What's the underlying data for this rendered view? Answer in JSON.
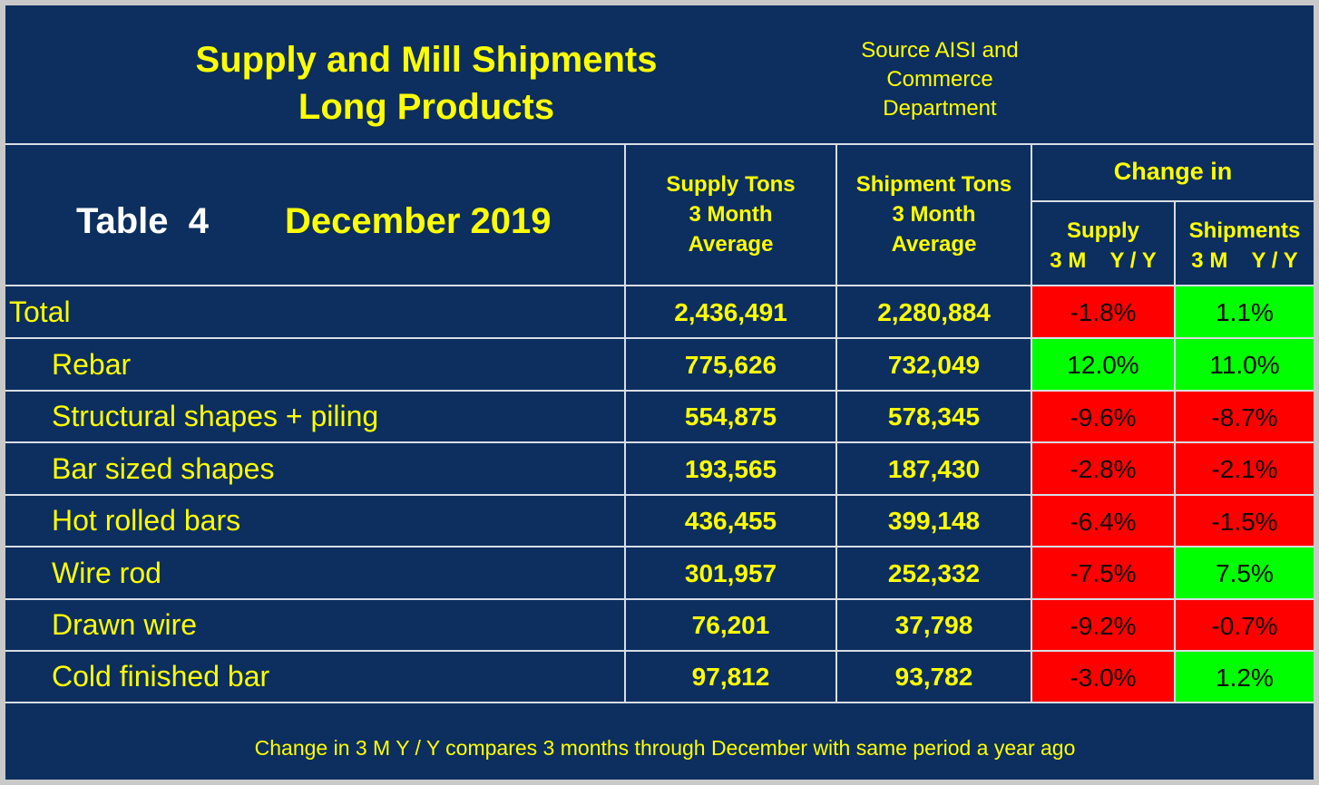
{
  "header": {
    "title_line1": "Supply and Mill Shipments",
    "title_line2": "Long Products",
    "source_line1": "Source AISI and",
    "source_line2": "Commerce",
    "source_line3": "Department"
  },
  "table_label": "Table  4",
  "date_label": "December 2019",
  "columns": {
    "supply": {
      "line1": "Supply Tons",
      "line2": "3 Month",
      "line3": "Average"
    },
    "shipment": {
      "line1": "Shipment Tons",
      "line2": "3 Month",
      "line3": "Average"
    },
    "change_in": "Change in",
    "supply_change": {
      "line1": "Supply",
      "line2": "3 M    Y / Y"
    },
    "shipments_change": {
      "line1": "Shipments",
      "line2": "3 M    Y / Y"
    }
  },
  "colors": {
    "background": "#0c2f5f",
    "text_yellow": "#ffff00",
    "positive": "#00ff00",
    "negative": "#ff0000"
  },
  "rows": [
    {
      "label": "Total",
      "supply": "2,436,491",
      "shipment": "2,280,884",
      "supply_change": "-1.8%",
      "supply_change_pct": -1.8,
      "shipments_change": "1.1%",
      "shipments_change_pct": 1.1
    },
    {
      "label": "Rebar",
      "supply": "775,626",
      "shipment": "732,049",
      "supply_change": "12.0%",
      "supply_change_pct": 12.0,
      "shipments_change": "11.0%",
      "shipments_change_pct": 11.0
    },
    {
      "label": "Structural shapes + piling",
      "supply": "554,875",
      "shipment": "578,345",
      "supply_change": "-9.6%",
      "supply_change_pct": -9.6,
      "shipments_change": "-8.7%",
      "shipments_change_pct": -8.7
    },
    {
      "label": "Bar sized shapes",
      "supply": "193,565",
      "shipment": "187,430",
      "supply_change": "-2.8%",
      "supply_change_pct": -2.8,
      "shipments_change": "-2.1%",
      "shipments_change_pct": -2.1
    },
    {
      "label": "Hot rolled bars",
      "supply": "436,455",
      "shipment": "399,148",
      "supply_change": "-6.4%",
      "supply_change_pct": -6.4,
      "shipments_change": "-1.5%",
      "shipments_change_pct": -1.5
    },
    {
      "label": "Wire rod",
      "supply": "301,957",
      "shipment": "252,332",
      "supply_change": "-7.5%",
      "supply_change_pct": -7.5,
      "shipments_change": "7.5%",
      "shipments_change_pct": 7.5
    },
    {
      "label": "Drawn wire",
      "supply": "76,201",
      "shipment": "37,798",
      "supply_change": "-9.2%",
      "supply_change_pct": -9.2,
      "shipments_change": "-0.7%",
      "shipments_change_pct": -0.7
    },
    {
      "label": "Cold finished bar",
      "supply": "97,812",
      "shipment": "93,782",
      "supply_change": "-3.0%",
      "supply_change_pct": -3.0,
      "shipments_change": "1.2%",
      "shipments_change_pct": 1.2
    }
  ],
  "footnote": "Change in 3 M  Y / Y compares 3 months through December with same period a year ago"
}
